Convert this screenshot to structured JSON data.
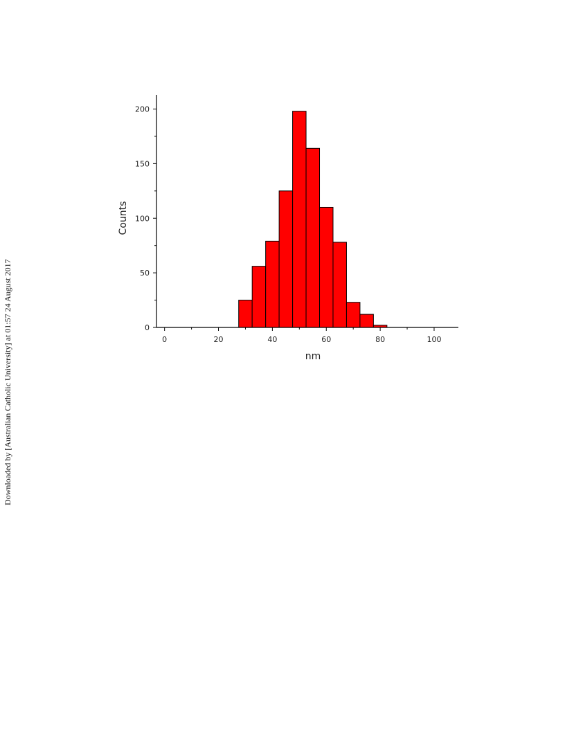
{
  "watermark": "Downloaded by [Australian Catholic University] at 01:57 24 August 2017",
  "chart_data": {
    "type": "histogram",
    "xlabel": "nm",
    "ylabel": "Counts",
    "bins": [
      27.5,
      32.5,
      37.5,
      42.5,
      47.5,
      52.5,
      57.5,
      62.5,
      67.5,
      72.5,
      77.5,
      82.5
    ],
    "values": [
      25,
      56,
      79,
      125,
      198,
      164,
      110,
      78,
      23,
      12,
      2
    ],
    "color": "#ff0000",
    "edgecolor": "#000000",
    "xlim": [
      -3,
      109
    ],
    "xticks": [
      0,
      20,
      40,
      60,
      80,
      100
    ],
    "xminorticks": [
      10,
      30,
      50,
      70,
      90
    ],
    "ylim": [
      0,
      213
    ],
    "yticks": [
      0,
      50,
      100,
      150,
      200
    ],
    "yminorticks": [
      25,
      75,
      125,
      175
    ],
    "grid": false
  }
}
